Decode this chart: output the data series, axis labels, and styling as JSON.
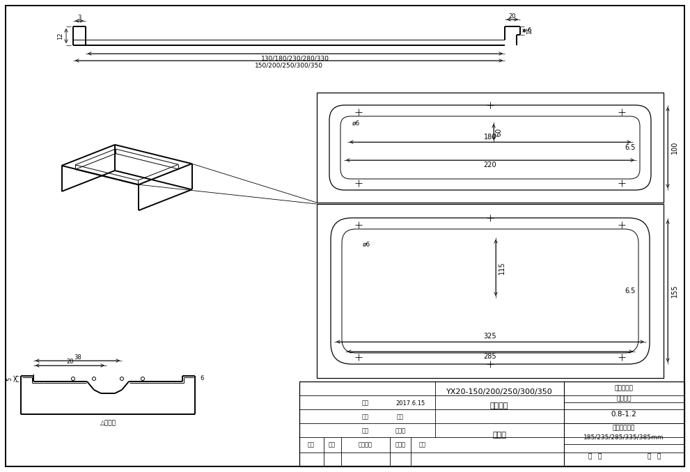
{
  "bg_color": "#ffffff",
  "line_color": "#000000",
  "drawing_number": "YX20-150/200/250/300/350",
  "drawing_name1": "型板形图",
  "drawing_name2": "板形图",
  "material_label": "型钟原材料",
  "thickness_label": "材料厚度",
  "thickness_value": "0.8-1.2",
  "section_label": "断面展开宽度",
  "section_values": "185/235/285/335/385mm",
  "date": "2017.6.15",
  "designer": "设计",
  "drawer": "制图",
  "checker": "审核",
  "standardize": "标准化",
  "approve": "审定",
  "total_sheets": "共   张",
  "sheet_num": "第   张",
  "mark_label": "标记",
  "count_label": "处数",
  "change_label": "修改原因",
  "norm_label": "标准化",
  "date_label": "日期",
  "close_label": "△闭合开"
}
